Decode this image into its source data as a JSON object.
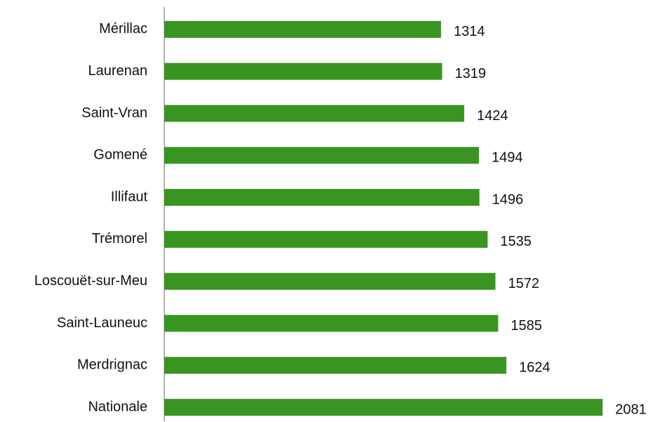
{
  "chart_data": {
    "type": "bar",
    "orientation": "horizontal",
    "categories": [
      "Mérillac",
      "Laurenan",
      "Saint-Vran",
      "Gomené",
      "Illifaut",
      "Trémorel",
      "Loscouët-sur-Meu",
      "Saint-Launeuc",
      "Merdrignac",
      "Nationale"
    ],
    "values": [
      1314,
      1319,
      1424,
      1494,
      1496,
      1535,
      1572,
      1585,
      1624,
      2081
    ],
    "color": "#3a9421",
    "xlim": [
      0,
      2300
    ],
    "grid": false
  }
}
